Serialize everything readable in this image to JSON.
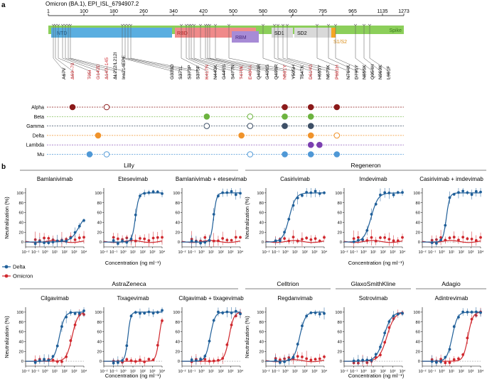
{
  "panel_a": {
    "label": "a",
    "title": "Omicron (BA.1), EPI_ISL_6794907.2",
    "ruler_ticks": [
      "1",
      "100",
      "180",
      "260",
      "340",
      "420",
      "500",
      "580",
      "660",
      "795",
      "965",
      "1135",
      "1273"
    ],
    "domains": [
      {
        "label": "NTD",
        "color": "#5aaee0"
      },
      {
        "label": "RBD",
        "color": "#f08a8a"
      },
      {
        "label": "RBM",
        "color": "#a78bd6"
      },
      {
        "label": "SD1",
        "color": "#d9d9d9"
      },
      {
        "label": "SD2",
        "color": "#d9d9d9"
      },
      {
        "label": "S1/S2",
        "color": "#f5a623"
      },
      {
        "label": "Spike",
        "color": "#8ccf5a"
      }
    ],
    "mutations": [
      {
        "label": "A67V",
        "red": false
      },
      {
        "label": "Δ​69–70",
        "red": true
      },
      {
        "label": "T95I",
        "red": true
      },
      {
        "label": "G142D",
        "red": true
      },
      {
        "label": "Δ143–145",
        "red": true
      },
      {
        "label": "ΔL212/L212I",
        "red": false
      },
      {
        "label": "Ins214EPE",
        "red": false
      },
      {
        "label": "G339D",
        "red": false
      },
      {
        "label": "S371L",
        "red": false
      },
      {
        "label": "S373P",
        "red": false
      },
      {
        "label": "S375F",
        "red": false
      },
      {
        "label": "K417N",
        "red": true
      },
      {
        "label": "N440K",
        "red": false
      },
      {
        "label": "G446S",
        "red": false
      },
      {
        "label": "S477N",
        "red": false
      },
      {
        "label": "T478K",
        "red": true
      },
      {
        "label": "E484A",
        "red": true
      },
      {
        "label": "Q493R",
        "red": false
      },
      {
        "label": "G496S",
        "red": false
      },
      {
        "label": "Q498R",
        "red": false
      },
      {
        "label": "N501Y",
        "red": true
      },
      {
        "label": "Y505H",
        "red": false
      },
      {
        "label": "T547K",
        "red": false
      },
      {
        "label": "D614G",
        "red": true
      },
      {
        "label": "H655Y",
        "red": false
      },
      {
        "label": "N679K",
        "red": false
      },
      {
        "label": "P681H",
        "red": true
      },
      {
        "label": "N764K",
        "red": false
      },
      {
        "label": "D796Y",
        "red": false
      },
      {
        "label": "N856K",
        "red": false
      },
      {
        "label": "Q954H",
        "red": false
      },
      {
        "label": "N969K",
        "red": false
      },
      {
        "label": "L981F",
        "red": false
      }
    ],
    "variants": [
      {
        "name": "Alpha",
        "color": "#8b1a1a",
        "dots": [
          {
            "m": 1,
            "f": true
          },
          {
            "m": 4,
            "f": false
          },
          {
            "m": 20,
            "f": true
          },
          {
            "m": 23,
            "f": true
          },
          {
            "m": 26,
            "f": true
          }
        ]
      },
      {
        "name": "Beta",
        "color": "#6cb33f",
        "dots": [
          {
            "m": 11,
            "f": true
          },
          {
            "m": 16,
            "f": false
          },
          {
            "m": 20,
            "f": true
          },
          {
            "m": 23,
            "f": true
          }
        ]
      },
      {
        "name": "Gamma",
        "color": "#3d4f66",
        "dots": [
          {
            "m": 11,
            "f": false
          },
          {
            "m": 16,
            "f": false
          },
          {
            "m": 20,
            "f": true
          },
          {
            "m": 23,
            "f": true
          }
        ]
      },
      {
        "name": "Delta",
        "color": "#f0932b",
        "dots": [
          {
            "m": 3,
            "f": true
          },
          {
            "m": 15,
            "f": true
          },
          {
            "m": 23,
            "f": true
          },
          {
            "m": 26,
            "f": false
          }
        ]
      },
      {
        "name": "Lambda",
        "color": "#7b3fb0",
        "dots": [
          {
            "m": 23,
            "f": true
          },
          {
            "m": 24,
            "f": true
          }
        ]
      },
      {
        "name": "Mu",
        "color": "#4f98d6",
        "dots": [
          {
            "m": 2,
            "f": true
          },
          {
            "m": 4,
            "f": false
          },
          {
            "m": 16,
            "f": false
          },
          {
            "m": 20,
            "f": true
          },
          {
            "m": 23,
            "f": true
          },
          {
            "m": 26,
            "f": true
          }
        ]
      }
    ]
  },
  "panel_b": {
    "label": "b",
    "groups": [
      "Lilly",
      "Regeneron",
      "AstraZeneca",
      "Celltrion",
      "GlaxoSmithKline",
      "Adagio"
    ],
    "y_label": "Neutralization (%)",
    "x_label": "Concentration (ng ml⁻¹)",
    "y_ticks": [
      "0",
      "20",
      "40",
      "60",
      "80",
      "100"
    ],
    "x_ticks": [
      "10⁻²",
      "10⁻¹",
      "10⁰",
      "10¹",
      "10²",
      "10³",
      "10⁴"
    ],
    "legend": [
      {
        "name": "Delta",
        "color": "#1f5f99"
      },
      {
        "name": "Omicron",
        "color": "#d0282e"
      }
    ]
  },
  "chart_data": [
    {
      "type": "line",
      "title": "Bamlanivimab",
      "group": "Lilly",
      "xlabel": "Concentration (ng ml-1)",
      "ylabel": "Neutralization (%)",
      "xscale": "log",
      "xlim": [
        0.01,
        10000
      ],
      "ylim": [
        -10,
        110
      ],
      "series": [
        {
          "name": "Delta",
          "ic50": 3000,
          "hill": 1.0,
          "top": 60
        },
        {
          "name": "Omicron",
          "ic50": null,
          "top": 0
        }
      ]
    },
    {
      "type": "line",
      "title": "Etesevimab",
      "group": "Lilly",
      "xlabel": "Concentration (ng ml-1)",
      "ylabel": "Neutralization (%)",
      "xscale": "log",
      "xlim": [
        0.01,
        10000
      ],
      "ylim": [
        -10,
        110
      ],
      "series": [
        {
          "name": "Delta",
          "ic50": 18,
          "hill": 2.5,
          "top": 100
        },
        {
          "name": "Omicron",
          "ic50": null,
          "top": 0
        }
      ]
    },
    {
      "type": "line",
      "title": "Bamlanivimab + etesevimab",
      "group": "Lilly",
      "xlabel": "Concentration (ng ml-1)",
      "ylabel": "Neutralization (%)",
      "xscale": "log",
      "xlim": [
        0.01,
        10000
      ],
      "ylim": [
        -10,
        110
      ],
      "series": [
        {
          "name": "Delta",
          "ic50": 18,
          "hill": 2.8,
          "top": 100
        },
        {
          "name": "Omicron",
          "ic50": null,
          "top": 0
        }
      ]
    },
    {
      "type": "line",
      "title": "Casirivimab",
      "group": "Regeneron",
      "xlabel": "Concentration (ng ml-1)",
      "ylabel": "Neutralization (%)",
      "xscale": "log",
      "xlim": [
        0.01,
        10000
      ],
      "ylim": [
        -10,
        110
      ],
      "series": [
        {
          "name": "Delta",
          "ic50": 2.5,
          "hill": 1.3,
          "top": 100
        },
        {
          "name": "Omicron",
          "ic50": null,
          "top": 0
        }
      ]
    },
    {
      "type": "line",
      "title": "Imdevimab",
      "group": "Regeneron",
      "xlabel": "Concentration (ng ml-1)",
      "ylabel": "Neutralization (%)",
      "xscale": "log",
      "xlim": [
        0.01,
        10000
      ],
      "ylim": [
        -10,
        110
      ],
      "series": [
        {
          "name": "Delta",
          "ic50": 6,
          "hill": 1.2,
          "top": 100
        },
        {
          "name": "Omicron",
          "ic50": null,
          "top": 0
        }
      ]
    },
    {
      "type": "line",
      "title": "Casirivimab + imdevimab",
      "group": "Regeneron",
      "xlabel": "Concentration (ng ml-1)",
      "ylabel": "Neutralization (%)",
      "xscale": "log",
      "xlim": [
        0.01,
        10000
      ],
      "ylim": [
        -10,
        110
      ],
      "series": [
        {
          "name": "Delta",
          "ic50": 3,
          "hill": 2.5,
          "top": 100
        },
        {
          "name": "Omicron",
          "ic50": null,
          "top": 0
        }
      ]
    },
    {
      "type": "line",
      "title": "Cilgavimab",
      "group": "AstraZeneca",
      "xlabel": "Concentration (ng ml-1)",
      "ylabel": "Neutralization (%)",
      "xscale": "log",
      "xlim": [
        0.01,
        10000
      ],
      "ylim": [
        -10,
        110
      ],
      "series": [
        {
          "name": "Delta",
          "ic50": 30,
          "hill": 1.6,
          "top": 100
        },
        {
          "name": "Omicron",
          "ic50": 600,
          "hill": 1.5,
          "top": 100
        }
      ]
    },
    {
      "type": "line",
      "title": "Tixagevimab",
      "group": "AstraZeneca",
      "xlabel": "Concentration (ng ml-1)",
      "ylabel": "Neutralization (%)",
      "xscale": "log",
      "xlim": [
        0.01,
        10000
      ],
      "ylim": [
        -10,
        110
      ],
      "series": [
        {
          "name": "Delta",
          "ic50": 3,
          "hill": 3.0,
          "top": 100
        },
        {
          "name": "Omicron",
          "ic50": 5000,
          "hill": 2.5,
          "top": 100
        }
      ]
    },
    {
      "type": "line",
      "title": "Cilgavimab + tixagevimab",
      "group": "AstraZeneca",
      "xlabel": "Concentration (ng ml-1)",
      "ylabel": "Neutralization (%)",
      "xscale": "log",
      "xlim": [
        0.01,
        10000
      ],
      "ylim": [
        -10,
        110
      ],
      "series": [
        {
          "name": "Delta",
          "ic50": 8,
          "hill": 1.8,
          "top": 100
        },
        {
          "name": "Omicron",
          "ic50": 700,
          "hill": 1.8,
          "top": 100
        }
      ]
    },
    {
      "type": "line",
      "title": "Regdanvimab",
      "group": "Celltrion",
      "xlabel": "Concentration (ng ml-1)",
      "ylabel": "Neutralization (%)",
      "xscale": "log",
      "xlim": [
        0.01,
        10000
      ],
      "ylim": [
        -10,
        110
      ],
      "series": [
        {
          "name": "Delta",
          "ic50": 30,
          "hill": 1.5,
          "top": 100
        },
        {
          "name": "Omicron",
          "ic50": null,
          "top": 0
        }
      ]
    },
    {
      "type": "line",
      "title": "Sotrovimab",
      "group": "GlaxoSmithKline",
      "xlabel": "Concentration (ng ml-1)",
      "ylabel": "Neutralization (%)",
      "xscale": "log",
      "xlim": [
        0.01,
        10000
      ],
      "ylim": [
        -10,
        110
      ],
      "series": [
        {
          "name": "Delta",
          "ic50": 120,
          "hill": 1.1,
          "top": 100
        },
        {
          "name": "Omicron",
          "ic50": 250,
          "hill": 1.1,
          "top": 100
        }
      ]
    },
    {
      "type": "line",
      "title": "Adintrevimab",
      "group": "Adagio",
      "xlabel": "Concentration (ng ml-1)",
      "ylabel": "Neutralization (%)",
      "xscale": "log",
      "xlim": [
        0.01,
        10000
      ],
      "ylim": [
        -10,
        110
      ],
      "series": [
        {
          "name": "Delta",
          "ic50": 12,
          "hill": 1.6,
          "top": 100
        },
        {
          "name": "Omicron",
          "ic50": 500,
          "hill": 1.8,
          "top": 100
        }
      ]
    }
  ]
}
